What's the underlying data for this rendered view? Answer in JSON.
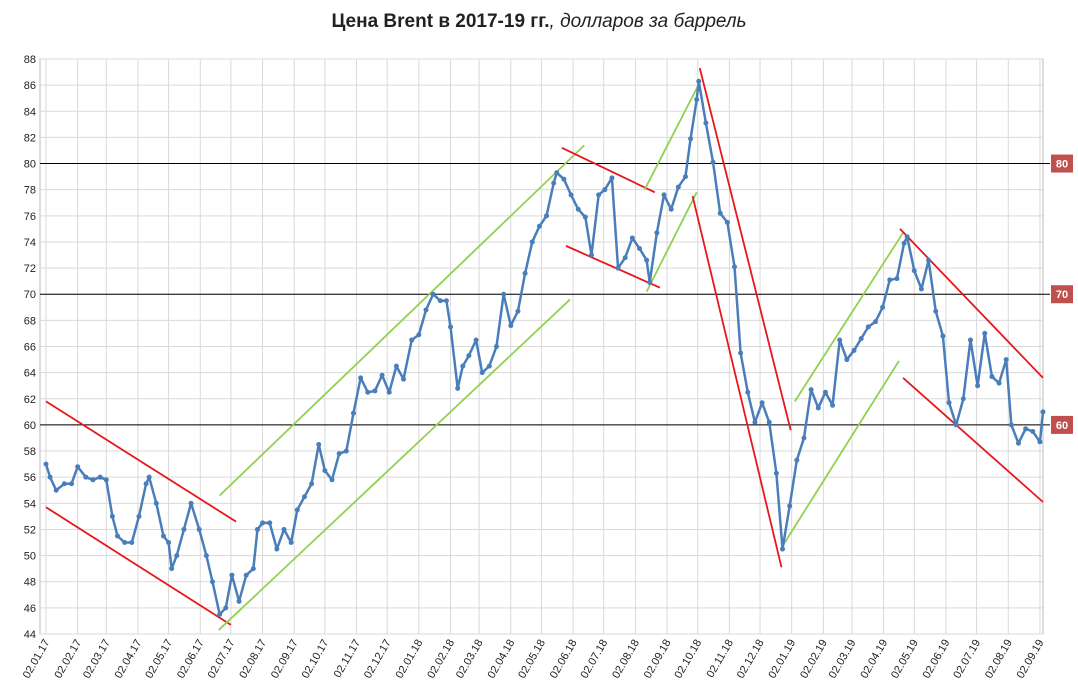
{
  "chart_data": {
    "type": "line",
    "title": "Цена Brent в 2017-19 гг.",
    "title_suffix": ", долларов за баррель",
    "color": "#4a7ebb",
    "x": [
      "02.01.17",
      "06.01.17",
      "12.01.17",
      "20.01.17",
      "27.01.17",
      "02.02.17",
      "10.02.17",
      "17.02.17",
      "24.02.17",
      "02.03.17",
      "08.03.17",
      "13.03.17",
      "20.03.17",
      "27.03.17",
      "03.04.17",
      "10.04.17",
      "13.04.17",
      "20.04.17",
      "27.04.17",
      "02.05.17",
      "05.05.17",
      "10.05.17",
      "17.05.17",
      "24.05.17",
      "01.06.17",
      "08.06.17",
      "14.06.17",
      "21.06.17",
      "27.06.17",
      "03.07.17",
      "10.07.17",
      "17.07.17",
      "24.07.17",
      "28.07.17",
      "02.08.17",
      "09.08.17",
      "16.08.17",
      "23.08.17",
      "30.08.17",
      "05.09.17",
      "12.09.17",
      "19.09.17",
      "26.09.17",
      "02.10.17",
      "09.10.17",
      "16.10.17",
      "23.10.17",
      "30.10.17",
      "06.11.17",
      "13.11.17",
      "20.11.17",
      "27.11.17",
      "04.12.17",
      "11.12.17",
      "18.12.17",
      "26.12.17",
      "02.01.18",
      "09.01.18",
      "16.01.18",
      "23.01.18",
      "29.01.18",
      "02.02.18",
      "09.02.18",
      "14.02.18",
      "20.02.18",
      "27.02.18",
      "05.03.18",
      "12.03.18",
      "19.03.18",
      "26.03.18",
      "02.04.18",
      "09.04.18",
      "16.04.18",
      "23.04.18",
      "30.04.18",
      "07.05.18",
      "14.05.18",
      "17.05.18",
      "24.05.18",
      "31.05.18",
      "07.06.18",
      "14.06.18",
      "20.06.18",
      "27.06.18",
      "03.07.18",
      "10.07.18",
      "16.07.18",
      "23.07.18",
      "30.07.18",
      "06.08.18",
      "13.08.18",
      "16.08.18",
      "23.08.18",
      "30.08.18",
      "06.09.18",
      "13.09.18",
      "20.09.18",
      "25.09.18",
      "01.10.18",
      "03.10.18",
      "10.10.18",
      "17.10.18",
      "24.10.18",
      "31.10.18",
      "07.11.18",
      "13.11.18",
      "20.11.18",
      "27.11.18",
      "04.12.18",
      "11.12.18",
      "18.12.18",
      "24.12.18",
      "31.12.18",
      "07.01.19",
      "14.01.19",
      "21.01.19",
      "28.01.19",
      "04.02.19",
      "11.02.19",
      "18.02.19",
      "25.02.19",
      "04.03.19",
      "11.03.19",
      "18.03.19",
      "25.03.19",
      "01.04.19",
      "08.04.19",
      "15.04.19",
      "22.04.19",
      "25.04.19",
      "02.05.19",
      "09.05.19",
      "16.05.19",
      "23.05.19",
      "30.05.19",
      "05.06.19",
      "12.06.19",
      "19.06.19",
      "26.06.19",
      "03.07.19",
      "10.07.19",
      "17.07.19",
      "24.07.19",
      "31.07.19",
      "05.08.19",
      "12.08.19",
      "19.08.19",
      "26.08.19",
      "02.09.19",
      "05.09.19"
    ],
    "values": [
      57,
      56,
      55,
      55.5,
      55.5,
      56.8,
      56,
      55.8,
      56,
      55.8,
      53,
      51.5,
      51,
      51,
      53,
      55.5,
      56,
      54,
      51.5,
      51,
      49,
      50,
      52,
      54,
      52,
      50,
      48,
      45.5,
      46,
      48.5,
      46.5,
      48.5,
      49,
      52,
      52.5,
      52.5,
      50.5,
      52,
      51,
      53.5,
      54.5,
      55.5,
      58.5,
      56.5,
      55.8,
      57.8,
      58,
      60.9,
      63.6,
      62.5,
      62.6,
      63.8,
      62.5,
      64.5,
      63.5,
      66.5,
      66.9,
      68.8,
      70,
      69.5,
      69.5,
      67.5,
      62.8,
      64.5,
      65.3,
      66.5,
      64,
      64.5,
      66,
      70,
      67.6,
      68.7,
      71.6,
      74,
      75.2,
      76,
      78.5,
      79.3,
      78.8,
      77.6,
      76.5,
      75.9,
      73,
      77.6,
      78,
      78.9,
      72,
      72.8,
      74.3,
      73.5,
      72.6,
      70.9,
      74.7,
      77.6,
      76.5,
      78.2,
      79,
      81.9,
      84.9,
      86.3,
      83.1,
      80.1,
      76.2,
      75.5,
      72.1,
      65.5,
      62.5,
      60.2,
      61.7,
      60.2,
      56.3,
      50.5,
      53.8,
      57.3,
      59,
      62.7,
      61.3,
      62.5,
      61.5,
      66.5,
      65,
      65.7,
      66.6,
      67.5,
      67.9,
      69,
      71.1,
      71.2,
      73.9,
      74.4,
      71.8,
      70.4,
      72.6,
      68.7,
      66.8,
      61.7,
      60,
      62,
      66.5,
      63,
      67,
      63.7,
      63.2,
      65,
      60,
      58.6,
      59.7,
      59.5,
      58.7,
      61
    ],
    "xlim": [
      "02.01.17",
      "05.09.19"
    ],
    "xticks": [
      "02.01.17",
      "02.02.17",
      "02.03.17",
      "02.04.17",
      "02.05.17",
      "02.06.17",
      "02.07.17",
      "02.08.17",
      "02.09.17",
      "02.10.17",
      "02.11.17",
      "02.12.17",
      "02.01.18",
      "02.02.18",
      "02.03.18",
      "02.04.18",
      "02.05.18",
      "02.06.18",
      "02.07.18",
      "02.08.18",
      "02.09.18",
      "02.10.18",
      "02.11.18",
      "02.12.18",
      "02.01.19",
      "02.02.19",
      "02.03.19",
      "02.04.19",
      "02.05.19",
      "02.06.19",
      "02.07.19",
      "02.08.19",
      "02.09.19"
    ],
    "ylim": [
      44,
      88
    ],
    "yticks": [
      44,
      46,
      48,
      50,
      52,
      54,
      56,
      58,
      60,
      62,
      64,
      66,
      68,
      70,
      72,
      74,
      76,
      78,
      80,
      82,
      84,
      86,
      88
    ],
    "grid": true,
    "hlines": [
      80,
      70,
      60
    ],
    "trendlines": [
      {
        "x": [
          "02.01.17",
          "07.07.17"
        ],
        "y": [
          61.8,
          52.6
        ],
        "color": "#e8171b"
      },
      {
        "x": [
          "02.01.17",
          "02.07.17"
        ],
        "y": [
          53.7,
          44.7
        ],
        "color": "#e8171b"
      },
      {
        "x": [
          "21.06.17",
          "13.06.18"
        ],
        "y": [
          54.6,
          81.4
        ],
        "color": "#92d050"
      },
      {
        "x": [
          "20.06.17",
          "30.05.18"
        ],
        "y": [
          44.3,
          69.6
        ],
        "color": "#92d050"
      },
      {
        "x": [
          "22.05.18",
          "21.08.18"
        ],
        "y": [
          81.2,
          77.8
        ],
        "color": "#e8171b"
      },
      {
        "x": [
          "26.05.18",
          "26.08.18"
        ],
        "y": [
          73.7,
          70.5
        ],
        "color": "#e8171b"
      },
      {
        "x": [
          "11.08.18",
          "04.10.18"
        ],
        "y": [
          78,
          86.2
        ],
        "color": "#92d050"
      },
      {
        "x": [
          "13.08.18",
          "01.10.18"
        ],
        "y": [
          70.2,
          77.8
        ],
        "color": "#92d050"
      },
      {
        "x": [
          "04.10.18",
          "01.01.19"
        ],
        "y": [
          87.3,
          59.6
        ],
        "color": "#e8171b"
      },
      {
        "x": [
          "27.09.18",
          "23.12.18"
        ],
        "y": [
          77.5,
          49.1
        ],
        "color": "#e8171b"
      },
      {
        "x": [
          "05.01.19",
          "21.04.19"
        ],
        "y": [
          61.8,
          74.7
        ],
        "color": "#92d050"
      },
      {
        "x": [
          "23.12.18",
          "17.04.19"
        ],
        "y": [
          50.6,
          64.9
        ],
        "color": "#92d050"
      },
      {
        "x": [
          "18.04.19",
          "05.09.19"
        ],
        "y": [
          75,
          63.6
        ],
        "color": "#e8171b"
      },
      {
        "x": [
          "21.04.19",
          "05.09.19"
        ],
        "y": [
          63.6,
          54.1
        ],
        "color": "#e8171b"
      }
    ]
  }
}
